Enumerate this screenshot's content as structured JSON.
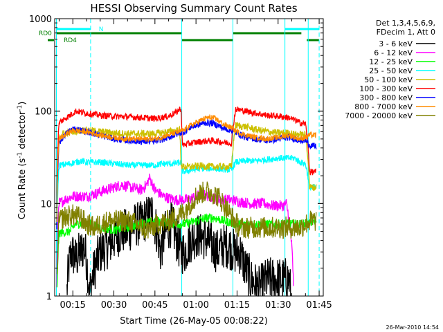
{
  "chart_data": {
    "type": "line",
    "title": "HESSI Observing Summary Count Rates",
    "xlabel": "Start Time (26-May-05 00:08:22)",
    "ylabel_main": "Count Rate (s",
    "ylabel_sup1": "-1",
    "ylabel_mid": " detector",
    "ylabel_sup2": "-1",
    "ylabel_end": ")",
    "yscale": "log",
    "ylim": [
      1,
      1000
    ],
    "xlim_min": [
      8.37,
      106.5
    ],
    "xticks": [
      {
        "t": 15,
        "label": "00:15"
      },
      {
        "t": 30,
        "label": "00:30"
      },
      {
        "t": 45,
        "label": "00:45"
      },
      {
        "t": 60,
        "label": "01:00"
      },
      {
        "t": 75,
        "label": "01:15"
      },
      {
        "t": 90,
        "label": "01:30"
      },
      {
        "t": 105,
        "label": "01:45"
      }
    ],
    "yticks": [
      {
        "v": 1,
        "label": "1"
      },
      {
        "v": 10,
        "label": "10"
      },
      {
        "v": 100,
        "label": "100"
      },
      {
        "v": 1000,
        "label": "1000"
      }
    ],
    "legend_header": [
      "Det 1,3,4,5,6,9,",
      "FDecim 1, Att 0"
    ],
    "series": [
      {
        "name": "3 - 6 keV",
        "color": "#000000",
        "points": [
          [
            9,
            0
          ],
          [
            12,
            0
          ],
          [
            13.5,
            2
          ],
          [
            14.5,
            3
          ],
          [
            16,
            2.5
          ],
          [
            18,
            3
          ],
          [
            19,
            3.5
          ],
          [
            20,
            2.5
          ],
          [
            21,
            1
          ],
          [
            25,
            3
          ],
          [
            28,
            3.5
          ],
          [
            31,
            4.5
          ],
          [
            33,
            5
          ],
          [
            35,
            5
          ],
          [
            38,
            6
          ],
          [
            40,
            6
          ],
          [
            42,
            7
          ],
          [
            44,
            8
          ],
          [
            45,
            6
          ],
          [
            47,
            3
          ],
          [
            49,
            5
          ],
          [
            51,
            6
          ],
          [
            53,
            4
          ],
          [
            54.5,
            3
          ],
          [
            56,
            3
          ],
          [
            58,
            4
          ],
          [
            60,
            4.5
          ],
          [
            62,
            4.5
          ],
          [
            64,
            4
          ],
          [
            66,
            3.5
          ],
          [
            68,
            3
          ],
          [
            70,
            3.5
          ],
          [
            72,
            3.5
          ],
          [
            74,
            3
          ],
          [
            76,
            3
          ],
          [
            78,
            2
          ],
          [
            80,
            1.5
          ],
          [
            83,
            1.2
          ],
          [
            86,
            1.5
          ],
          [
            90,
            1.5
          ],
          [
            94,
            1.5
          ],
          [
            96,
            0
          ],
          [
            106,
            0
          ]
        ]
      },
      {
        "name": "6 - 12 keV",
        "color": "#ff00ff",
        "points": [
          [
            9,
            0
          ],
          [
            10,
            10
          ],
          [
            12,
            11
          ],
          [
            15,
            12
          ],
          [
            20,
            12
          ],
          [
            24,
            13
          ],
          [
            27,
            14
          ],
          [
            30,
            15
          ],
          [
            33,
            16
          ],
          [
            36,
            15
          ],
          [
            40,
            14
          ],
          [
            42,
            16
          ],
          [
            43,
            19
          ],
          [
            45,
            14
          ],
          [
            48,
            12
          ],
          [
            52,
            11
          ],
          [
            55,
            11
          ],
          [
            57,
            11
          ],
          [
            60,
            12
          ],
          [
            62,
            12.5
          ],
          [
            65,
            12
          ],
          [
            68,
            11
          ],
          [
            72,
            11
          ],
          [
            76,
            10.5
          ],
          [
            80,
            10
          ],
          [
            85,
            10
          ],
          [
            88,
            9.5
          ],
          [
            92,
            9.5
          ],
          [
            93,
            10
          ],
          [
            96,
            0
          ],
          [
            106,
            0
          ]
        ]
      },
      {
        "name": "12 - 25 keV",
        "color": "#00ff00",
        "points": [
          [
            9,
            0
          ],
          [
            10,
            4.8
          ],
          [
            14,
            5
          ],
          [
            16,
            6
          ],
          [
            20,
            6.2
          ],
          [
            25,
            5.5
          ],
          [
            30,
            5.2
          ],
          [
            35,
            5.5
          ],
          [
            40,
            6
          ],
          [
            45,
            6.5
          ],
          [
            50,
            6.2
          ],
          [
            54,
            6
          ],
          [
            56,
            6
          ],
          [
            60,
            6.5
          ],
          [
            64,
            7
          ],
          [
            67,
            7
          ],
          [
            70,
            6.5
          ],
          [
            75,
            6
          ],
          [
            80,
            6
          ],
          [
            85,
            6
          ],
          [
            90,
            6
          ],
          [
            96,
            6
          ],
          [
            100,
            6
          ],
          [
            101.5,
            6.2
          ],
          [
            103,
            6.5
          ],
          [
            104,
            6.5
          ]
        ]
      },
      {
        "name": "25 - 50 keV",
        "color": "#00ffff",
        "points": [
          [
            9,
            0
          ],
          [
            10,
            26
          ],
          [
            14,
            27
          ],
          [
            18,
            29
          ],
          [
            20,
            28
          ],
          [
            25,
            28
          ],
          [
            30,
            27
          ],
          [
            35,
            26
          ],
          [
            40,
            26
          ],
          [
            45,
            26
          ],
          [
            48,
            27
          ],
          [
            52,
            27
          ],
          [
            54.5,
            28
          ],
          [
            55,
            22
          ],
          [
            58,
            23
          ],
          [
            62,
            24
          ],
          [
            66,
            24
          ],
          [
            70,
            23.5
          ],
          [
            73,
            23
          ],
          [
            74.5,
            28
          ],
          [
            78,
            29
          ],
          [
            82,
            29
          ],
          [
            86,
            30
          ],
          [
            90,
            31
          ],
          [
            94,
            31
          ],
          [
            96,
            31
          ],
          [
            98,
            28
          ],
          [
            100,
            27
          ],
          [
            101.5,
            15
          ],
          [
            104,
            15
          ]
        ]
      },
      {
        "name": "50 - 100 keV",
        "color": "#ccc000",
        "points": [
          [
            9,
            0
          ],
          [
            10,
            55
          ],
          [
            14,
            60
          ],
          [
            18,
            62
          ],
          [
            20,
            62
          ],
          [
            25,
            60
          ],
          [
            30,
            58
          ],
          [
            35,
            57
          ],
          [
            40,
            57
          ],
          [
            45,
            57
          ],
          [
            50,
            60
          ],
          [
            54,
            62
          ],
          [
            54.5,
            28
          ],
          [
            55,
            25
          ],
          [
            58,
            25
          ],
          [
            62,
            25.5
          ],
          [
            66,
            25
          ],
          [
            70,
            25
          ],
          [
            73,
            25
          ],
          [
            74.5,
            70
          ],
          [
            78,
            68
          ],
          [
            82,
            63
          ],
          [
            86,
            60
          ],
          [
            90,
            58
          ],
          [
            94,
            58
          ],
          [
            96,
            56
          ],
          [
            98,
            56
          ],
          [
            100,
            55
          ],
          [
            101.5,
            15
          ],
          [
            104,
            15
          ]
        ]
      },
      {
        "name": "100 - 300 keV",
        "color": "#ff0000",
        "points": [
          [
            9,
            0
          ],
          [
            10,
            75
          ],
          [
            14,
            90
          ],
          [
            16,
            100
          ],
          [
            20,
            95
          ],
          [
            25,
            90
          ],
          [
            30,
            88
          ],
          [
            35,
            87
          ],
          [
            40,
            85
          ],
          [
            45,
            83
          ],
          [
            50,
            88
          ],
          [
            53,
            98
          ],
          [
            54.5,
            108
          ],
          [
            55,
            43
          ],
          [
            58,
            45
          ],
          [
            62,
            47
          ],
          [
            66,
            48
          ],
          [
            70,
            46
          ],
          [
            73,
            45
          ],
          [
            74.5,
            105
          ],
          [
            78,
            100
          ],
          [
            82,
            95
          ],
          [
            86,
            90
          ],
          [
            90,
            88
          ],
          [
            94,
            85
          ],
          [
            96,
            80
          ],
          [
            98,
            75
          ],
          [
            100,
            73
          ],
          [
            101.5,
            22
          ],
          [
            104,
            22
          ]
        ]
      },
      {
        "name": "300 - 800 keV",
        "color": "#0000ff",
        "points": [
          [
            9,
            0
          ],
          [
            10,
            45
          ],
          [
            12,
            55
          ],
          [
            15,
            65
          ],
          [
            20,
            60
          ],
          [
            25,
            55
          ],
          [
            30,
            50
          ],
          [
            35,
            48
          ],
          [
            40,
            47
          ],
          [
            45,
            47
          ],
          [
            50,
            52
          ],
          [
            54,
            58
          ],
          [
            56,
            60
          ],
          [
            58,
            67
          ],
          [
            62,
            73
          ],
          [
            64,
            75
          ],
          [
            66,
            74
          ],
          [
            68,
            70
          ],
          [
            70,
            65
          ],
          [
            73,
            62
          ],
          [
            75,
            58
          ],
          [
            78,
            52
          ],
          [
            82,
            50
          ],
          [
            86,
            48
          ],
          [
            90,
            50
          ],
          [
            94,
            52
          ],
          [
            96,
            50
          ],
          [
            98,
            48
          ],
          [
            100,
            48
          ],
          [
            101.5,
            43
          ],
          [
            104,
            41
          ]
        ]
      },
      {
        "name": "800 - 7000 keV",
        "color": "#ff8c00",
        "points": [
          [
            9,
            0
          ],
          [
            10,
            50
          ],
          [
            12,
            55
          ],
          [
            15,
            62
          ],
          [
            20,
            60
          ],
          [
            25,
            55
          ],
          [
            30,
            52
          ],
          [
            35,
            50
          ],
          [
            40,
            50
          ],
          [
            45,
            50
          ],
          [
            50,
            55
          ],
          [
            54,
            60
          ],
          [
            56,
            63
          ],
          [
            58,
            70
          ],
          [
            62,
            80
          ],
          [
            64,
            85
          ],
          [
            66,
            85
          ],
          [
            68,
            80
          ],
          [
            70,
            72
          ],
          [
            73,
            66
          ],
          [
            75,
            60
          ],
          [
            78,
            55
          ],
          [
            82,
            52
          ],
          [
            86,
            50
          ],
          [
            90,
            52
          ],
          [
            94,
            55
          ],
          [
            96,
            52
          ],
          [
            98,
            50
          ],
          [
            100,
            52
          ],
          [
            101.5,
            55
          ],
          [
            104,
            55
          ]
        ]
      },
      {
        "name": "7000 - 20000 keV",
        "color": "#808000",
        "points": [
          [
            9,
            0
          ],
          [
            10,
            6.5
          ],
          [
            12,
            7.2
          ],
          [
            15,
            7.5
          ],
          [
            18,
            7
          ],
          [
            20,
            6
          ],
          [
            23,
            5.5
          ],
          [
            25,
            6
          ],
          [
            28,
            6.5
          ],
          [
            30,
            6.5
          ],
          [
            33,
            6.5
          ],
          [
            35,
            6.5
          ],
          [
            38,
            6
          ],
          [
            40,
            5.5
          ],
          [
            42,
            5.2
          ],
          [
            44,
            5.5
          ],
          [
            46,
            6
          ],
          [
            48,
            6.2
          ],
          [
            50,
            6.5
          ],
          [
            52,
            7
          ],
          [
            54,
            7.5
          ],
          [
            56,
            8.5
          ],
          [
            58,
            10
          ],
          [
            60,
            12
          ],
          [
            62,
            13
          ],
          [
            64,
            13.5
          ],
          [
            66,
            13
          ],
          [
            68,
            12
          ],
          [
            70,
            10
          ],
          [
            72,
            8
          ],
          [
            74,
            6.5
          ],
          [
            76,
            5.5
          ],
          [
            78,
            5.5
          ],
          [
            82,
            5.5
          ],
          [
            86,
            5.5
          ],
          [
            90,
            5.5
          ],
          [
            94,
            5.5
          ],
          [
            96,
            5.5
          ],
          [
            98,
            5.5
          ],
          [
            100,
            6
          ],
          [
            102,
            6.5
          ],
          [
            104,
            6.5
          ]
        ]
      }
    ],
    "vertical_lines": [
      {
        "t": 9,
        "style": "solid"
      },
      {
        "t": 21.5,
        "style": "dashed"
      },
      {
        "t": 54.8,
        "style": "solid"
      },
      {
        "t": 73.5,
        "style": "solid"
      },
      {
        "t": 92.5,
        "style": "solid"
      },
      {
        "t": 101,
        "style": "solid"
      },
      {
        "t": 105,
        "style": "dashed"
      }
    ],
    "state_bars": {
      "cyan_label": "N",
      "rd0_label": "RD0",
      "rd4_label": "RD4",
      "cyan_segments": [
        [
          9,
          21.5
        ],
        [
          92.5,
          105
        ]
      ],
      "rd0_segments": [
        [
          9,
          54.8
        ],
        [
          73.5,
          98.5
        ]
      ],
      "rd4_segments": [
        [
          54.8,
          73.5
        ],
        [
          100.5,
          105
        ]
      ]
    }
  },
  "footer_timestamp": "26-Mar-2010 14:54"
}
